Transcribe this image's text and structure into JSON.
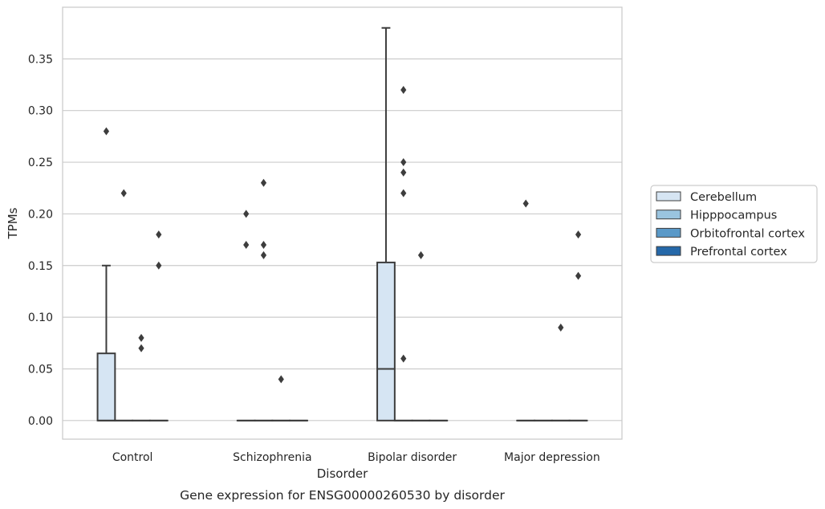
{
  "chart_data": {
    "type": "box",
    "xlabel": "Disorder",
    "ylabel": "TPMs",
    "caption": "Gene expression for ENSG00000260530 by disorder",
    "ylim": [
      -0.018,
      0.4
    ],
    "yticks": [
      "0.00",
      "0.05",
      "0.10",
      "0.15",
      "0.20",
      "0.25",
      "0.30",
      "0.35"
    ],
    "ytick_values": [
      0,
      0.05,
      0.1,
      0.15,
      0.2,
      0.25,
      0.3,
      0.35
    ],
    "grid": true,
    "legend_position": "right",
    "categories": [
      "Control",
      "Schizophrenia",
      "Bipolar disorder",
      "Major depression"
    ],
    "series": [
      {
        "name": "Cerebellum",
        "color": "#d6e5f3",
        "boxes": [
          {
            "q1": 0,
            "median": 0,
            "q3": 0.065,
            "whisker_low": 0,
            "whisker_high": 0.15,
            "outliers": [
              0.28
            ]
          },
          {
            "q1": 0,
            "median": 0,
            "q3": 0,
            "whisker_low": 0,
            "whisker_high": 0,
            "outliers": [
              0.2,
              0.17
            ]
          },
          {
            "q1": 0,
            "median": 0.05,
            "q3": 0.153,
            "whisker_low": 0,
            "whisker_high": 0.38,
            "outliers": []
          },
          {
            "q1": 0,
            "median": 0,
            "q3": 0,
            "whisker_low": 0,
            "whisker_high": 0,
            "outliers": [
              0.21
            ]
          }
        ]
      },
      {
        "name": "Hipppocampus",
        "color": "#9ac4df",
        "boxes": [
          {
            "q1": 0,
            "median": 0,
            "q3": 0,
            "whisker_low": 0,
            "whisker_high": 0,
            "outliers": [
              0.22
            ]
          },
          {
            "q1": 0,
            "median": 0,
            "q3": 0,
            "whisker_low": 0,
            "whisker_high": 0,
            "outliers": [
              0.23,
              0.17,
              0.16
            ]
          },
          {
            "q1": 0,
            "median": 0,
            "q3": 0,
            "whisker_low": 0,
            "whisker_high": 0,
            "outliers": [
              0.32,
              0.25,
              0.24,
              0.22,
              0.06
            ]
          },
          {
            "q1": 0,
            "median": 0,
            "q3": 0,
            "whisker_low": 0,
            "whisker_high": 0,
            "outliers": []
          }
        ]
      },
      {
        "name": "Orbitofrontal cortex",
        "color": "#5a99c8",
        "boxes": [
          {
            "q1": 0,
            "median": 0,
            "q3": 0,
            "whisker_low": 0,
            "whisker_high": 0,
            "outliers": [
              0.08,
              0.07
            ]
          },
          {
            "q1": 0,
            "median": 0,
            "q3": 0,
            "whisker_low": 0,
            "whisker_high": 0,
            "outliers": [
              0.04
            ]
          },
          {
            "q1": 0,
            "median": 0,
            "q3": 0,
            "whisker_low": 0,
            "whisker_high": 0,
            "outliers": [
              0.16
            ]
          },
          {
            "q1": 0,
            "median": 0,
            "q3": 0,
            "whisker_low": 0,
            "whisker_high": 0,
            "outliers": [
              0.09
            ]
          }
        ]
      },
      {
        "name": "Prefrontal cortex",
        "color": "#2568a9",
        "boxes": [
          {
            "q1": 0,
            "median": 0,
            "q3": 0,
            "whisker_low": 0,
            "whisker_high": 0,
            "outliers": [
              0.18,
              0.15
            ]
          },
          {
            "q1": 0,
            "median": 0,
            "q3": 0,
            "whisker_low": 0,
            "whisker_high": 0,
            "outliers": []
          },
          {
            "q1": 0,
            "median": 0,
            "q3": 0,
            "whisker_low": 0,
            "whisker_high": 0,
            "outliers": []
          },
          {
            "q1": 0,
            "median": 0,
            "q3": 0,
            "whisker_low": 0,
            "whisker_high": 0,
            "outliers": [
              0.18,
              0.14
            ]
          }
        ]
      }
    ]
  }
}
